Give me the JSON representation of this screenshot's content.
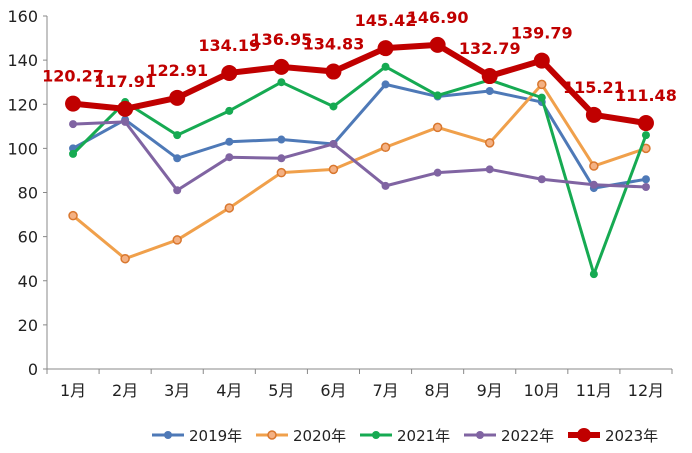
{
  "chart_data": {
    "type": "line",
    "title": "",
    "xlabel": "",
    "ylabel": "",
    "ylim": [
      0,
      160
    ],
    "yticks": [
      "0",
      "20",
      "40",
      "60",
      "80",
      "100",
      "120",
      "140",
      "160"
    ],
    "categories": [
      "1月",
      "2月",
      "3月",
      "4月",
      "5月",
      "6月",
      "7月",
      "8月",
      "9月",
      "10月",
      "11月",
      "12月"
    ],
    "legend_position": "bottom",
    "series": [
      {
        "name": "2019年",
        "color": "#4e79b7",
        "values": [
          100,
          113,
          95.5,
          103,
          104,
          102,
          129,
          123.5,
          126,
          121,
          82,
          86
        ]
      },
      {
        "name": "2020年",
        "color": "#f0a04b",
        "values": [
          69.5,
          50,
          58.5,
          73,
          89,
          90.5,
          100.5,
          109.5,
          102.5,
          129,
          92,
          100
        ]
      },
      {
        "name": "2021年",
        "color": "#16aa52",
        "values": [
          97.5,
          121,
          106,
          117,
          130,
          119,
          137,
          124,
          131,
          123,
          43,
          106
        ]
      },
      {
        "name": "2022年",
        "color": "#8064a2",
        "values": [
          111,
          112,
          81,
          96,
          95.5,
          102,
          83,
          89,
          90.5,
          86,
          83.5,
          82.5
        ]
      },
      {
        "name": "2023年",
        "color": "#c00000",
        "values": [
          120.27,
          117.91,
          122.91,
          134.19,
          136.95,
          134.83,
          145.42,
          146.9,
          132.79,
          139.79,
          115.21,
          111.48
        ],
        "labels": [
          "120.27",
          "117.91",
          "122.91",
          "134.19",
          "136.95",
          "134.83",
          "145.42",
          "146.90",
          "132.79",
          "139.79",
          "115.21",
          "111.48"
        ]
      }
    ]
  }
}
